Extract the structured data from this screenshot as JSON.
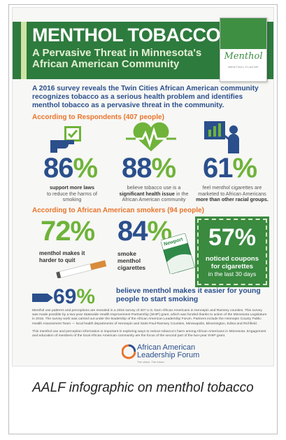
{
  "header": {
    "title": "MENTHOL TOBACCO",
    "subtitle": "A Pervasive Threat in Minnesota's African American Community",
    "pack_brand": "Menthol",
    "pack_sub": "MENTHOL FLAVOR"
  },
  "intro": "A 2016 survey reveals the Twin Cities African American community recognizes tobacco as a serious health problem and identifies menthol tobacco as a pervasive threat in the community.",
  "respondents": {
    "heading": "According to Respondents (407 people)",
    "stats": [
      {
        "number": "86",
        "pct": "%",
        "caption_bold": "support more laws",
        "caption_rest": "to reduce the harms of smoking"
      },
      {
        "number": "88",
        "pct": "%",
        "caption_pre": "believe tobacco use is a",
        "caption_bold": "significant health issue",
        "caption_rest": "in the African American community"
      },
      {
        "number": "61",
        "pct": "%",
        "caption_pre": "feel menthol cigarettes are marketed to African Americans",
        "caption_bold": "more than other racial groups."
      }
    ]
  },
  "smokers": {
    "heading": "According to African American smokers (94 people)",
    "stat72": {
      "number": "72",
      "pct": "%",
      "caption": "menthol makes it harder to quit"
    },
    "stat84": {
      "number": "84",
      "pct": "%",
      "caption": "smoke menthol cigarettes"
    },
    "newport": "Newport",
    "stat57": {
      "number": "57%",
      "caption_bold": "noticed coupons for cigarettes",
      "caption_rest": "in the last 30 days"
    },
    "stat69": {
      "number": "69",
      "pct": "%",
      "caption": "believe menthol makes it easier for young people to start smoking"
    }
  },
  "fine_print": [
    "Menthol use patterns and perceptions are revealed in a 2016 survey of 407 U.S.-born African Americans in Hennepin and Ramsey counties. This survey was made possible by a two-year Statewide Health Improvement Partnership (SHIP) grant, which was funded thanks to action of the Minnesota Legislature in 2015. The survey work was carried out under the leadership of the African American Leadership Forum. Partners include the Hennepin County Public Health Assessment Team — local health departments of Hennepin and Saint Paul-Ramsey Counties, Minneapolis, Bloomington, Edina and Richfield.",
    "This menthol use and perception information is important in exploring ways to reduce tobacco's harm among African Americans in Minnesota. Engagement and education of members of the local African American community are the focus of the second part of the two-year SHIP grant."
  ],
  "logo": {
    "line1": "African American",
    "line2": "Leadership Forum",
    "tag": "The vision. The future."
  },
  "caption": "AALF infographic on menthol tobacco",
  "colors": {
    "green": "#2e7b3e",
    "navy": "#2a4f8c",
    "lime": "#6fb33a",
    "orange": "#e8742b"
  }
}
